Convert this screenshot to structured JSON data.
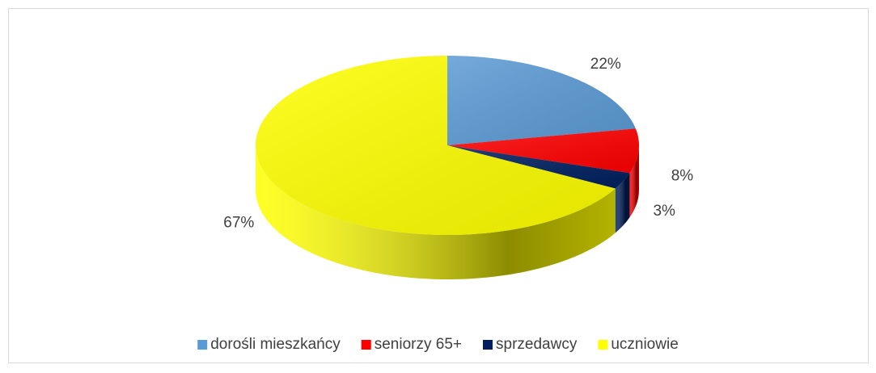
{
  "chart_data": {
    "type": "pie",
    "categories": [
      "dorośli mieszkańcy",
      "seniorzy 65+",
      "sprzedawcy",
      "uczniowie"
    ],
    "series": [
      {
        "values": [
          22,
          8,
          3,
          67
        ],
        "value_labels": [
          "22%",
          "8%",
          "3%",
          "67%"
        ],
        "colors": [
          "#5b9bd5",
          "#ff0000",
          "#002060",
          "#ffff00"
        ]
      }
    ],
    "legend": "bottom"
  }
}
